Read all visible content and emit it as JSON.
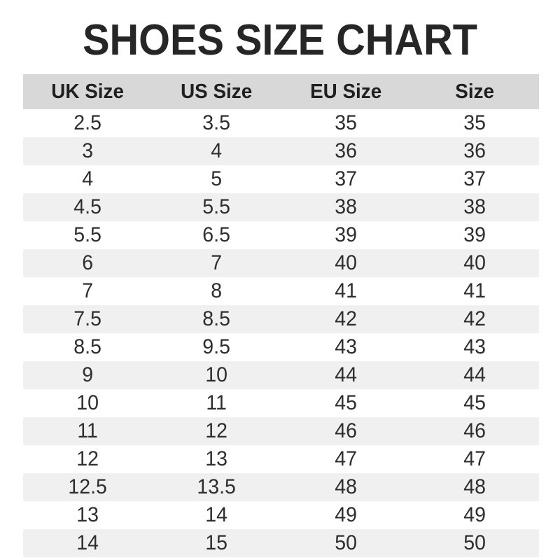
{
  "title": "SHOES SIZE CHART",
  "colors": {
    "background": "#ffffff",
    "header_bg": "#d8d8d8",
    "stripe_bg": "#f0f0f0",
    "title_text": "#262626",
    "body_text": "#2e2e2e"
  },
  "chart_data": {
    "type": "table",
    "title": "SHOES SIZE CHART",
    "columns": [
      "UK Size",
      "US Size",
      "EU Size",
      "Size"
    ],
    "rows": [
      [
        "2.5",
        "3.5",
        "35",
        "35"
      ],
      [
        "3",
        "4",
        "36",
        "36"
      ],
      [
        "4",
        "5",
        "37",
        "37"
      ],
      [
        "4.5",
        "5.5",
        "38",
        "38"
      ],
      [
        "5.5",
        "6.5",
        "39",
        "39"
      ],
      [
        "6",
        "7",
        "40",
        "40"
      ],
      [
        "7",
        "8",
        "41",
        "41"
      ],
      [
        "7.5",
        "8.5",
        "42",
        "42"
      ],
      [
        "8.5",
        "9.5",
        "43",
        "43"
      ],
      [
        "9",
        "10",
        "44",
        "44"
      ],
      [
        "10",
        "11",
        "45",
        "45"
      ],
      [
        "11",
        "12",
        "46",
        "46"
      ],
      [
        "12",
        "13",
        "47",
        "47"
      ],
      [
        "12.5",
        "13.5",
        "48",
        "48"
      ],
      [
        "13",
        "14",
        "49",
        "49"
      ],
      [
        "14",
        "15",
        "50",
        "50"
      ]
    ],
    "layout": {
      "zebra_striping": true,
      "first_data_row_background": "white",
      "grid": false
    }
  }
}
